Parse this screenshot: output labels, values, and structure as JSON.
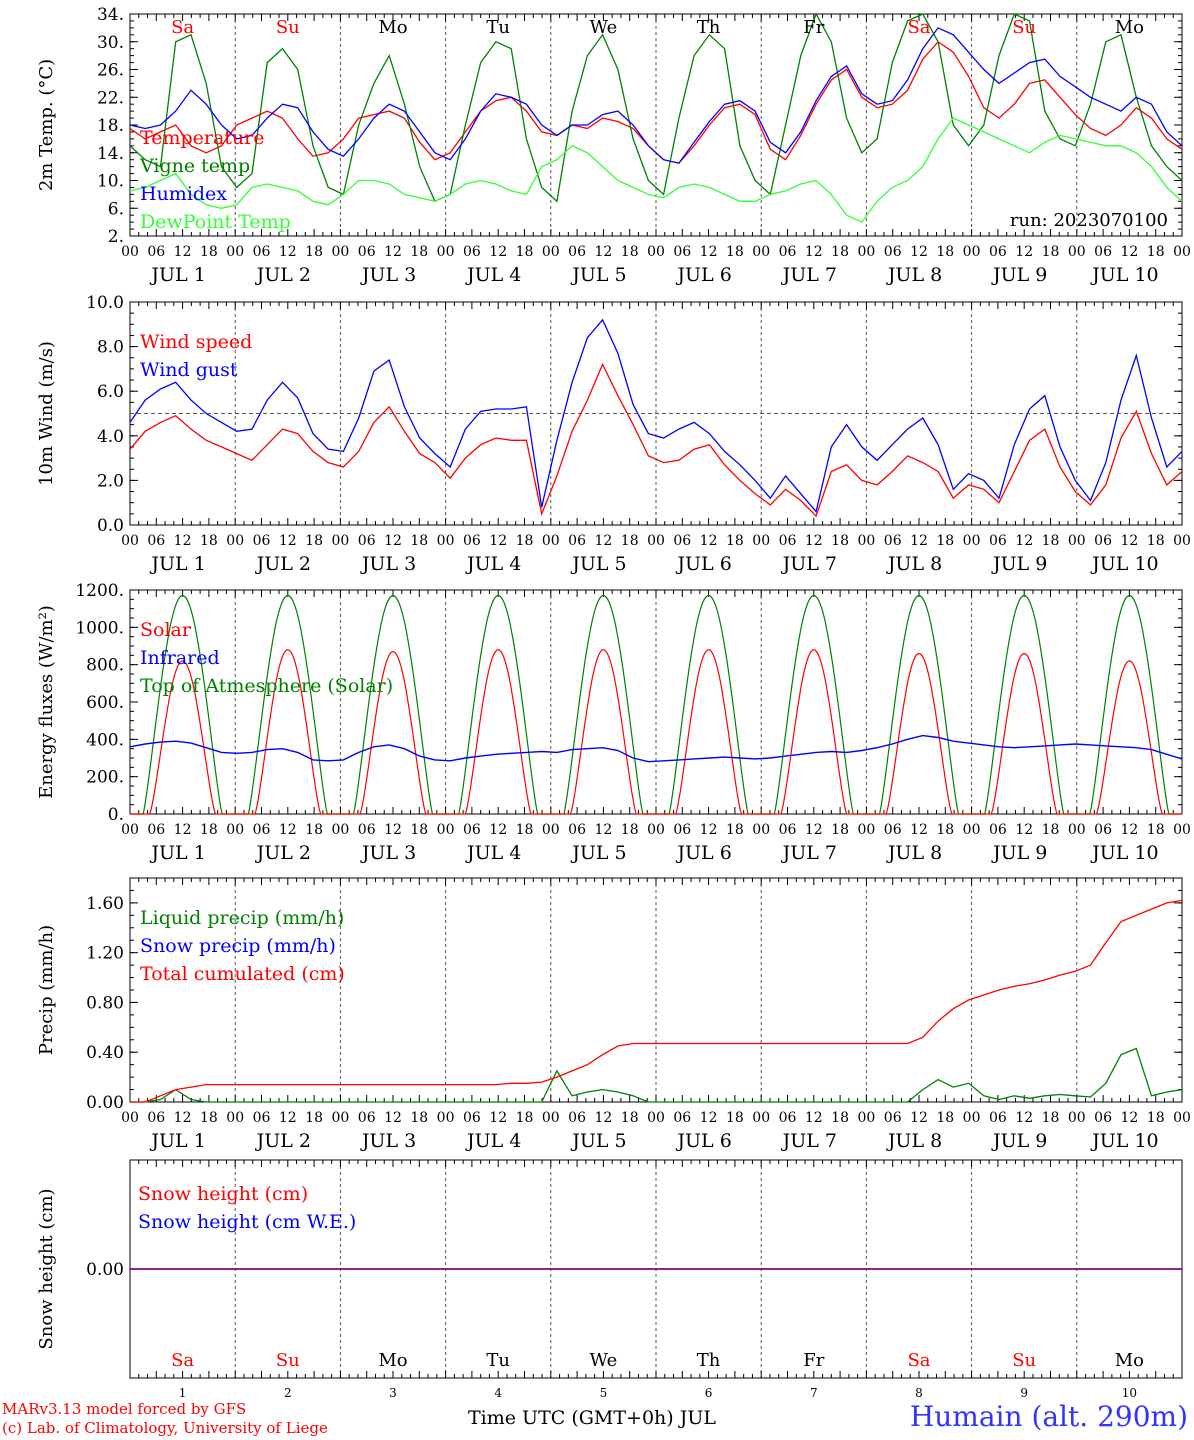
{
  "chart_data": [
    {
      "type": "line",
      "ylabel": "2m Temp. (°C)",
      "ylim": [
        2,
        34
      ],
      "yticks": [
        "34.",
        "30.",
        "26.",
        "22.",
        "18.",
        "14.",
        "10.",
        "6.",
        "2."
      ],
      "ytick_values": [
        34,
        30,
        26,
        22,
        18,
        14,
        10,
        6,
        2
      ],
      "annotation": "run: 2023070100",
      "day_names": [
        "Sa",
        "Su",
        "Mo",
        "Tu",
        "We",
        "Th",
        "Fr",
        "Sa",
        "Su",
        "Mo"
      ],
      "series": [
        {
          "name": "Temperature",
          "color": "#ff0000",
          "values": [
            17.5,
            16,
            17,
            18,
            15,
            14,
            15,
            18,
            19,
            20,
            19,
            16,
            13.5,
            14,
            16,
            19,
            19.5,
            20,
            19,
            15.5,
            13,
            14,
            17,
            20,
            21.5,
            22,
            20,
            17,
            16.5,
            18,
            17.5,
            19,
            18.5,
            17.5,
            15,
            13,
            12.5,
            15,
            18,
            20.5,
            21,
            19.5,
            14.5,
            13,
            16.5,
            21,
            24.5,
            26,
            22,
            20.5,
            21,
            23,
            27.5,
            30,
            28.5,
            25,
            20.5,
            19,
            21,
            24,
            24.5,
            22,
            19.5,
            17.5,
            16.5,
            18,
            20.5,
            19,
            16,
            14.5
          ]
        },
        {
          "name": "Vigne temp",
          "color": "#008000",
          "values": [
            15,
            13,
            12,
            30,
            31,
            24,
            12,
            9,
            11,
            27,
            29,
            26,
            15,
            9,
            8,
            18,
            24,
            28,
            21,
            12,
            7,
            8,
            18,
            27,
            30,
            29,
            16,
            9,
            7,
            20,
            28,
            31,
            26,
            16,
            10,
            8,
            19,
            28,
            31,
            29,
            15,
            10,
            8,
            18,
            28,
            34,
            30,
            19,
            14,
            16,
            27,
            33,
            34,
            30,
            18,
            15,
            18,
            28,
            34,
            33,
            20,
            16,
            15,
            21,
            30,
            31,
            22,
            15,
            12,
            10
          ]
        },
        {
          "name": "Humidex",
          "color": "#0000ff",
          "values": [
            18,
            17.5,
            18,
            20,
            23,
            21,
            18,
            16,
            16.5,
            19,
            21,
            20.5,
            17,
            14.5,
            13.5,
            16,
            19,
            21,
            20,
            17,
            14,
            13,
            16,
            20,
            22.5,
            22,
            21,
            18,
            16.5,
            18,
            18,
            19.5,
            20,
            18,
            15,
            13,
            12.5,
            15.5,
            18.5,
            21,
            21.5,
            20,
            15.5,
            14,
            17,
            21.5,
            25,
            26.5,
            22.5,
            21,
            21.5,
            24.5,
            29,
            32,
            31,
            28.5,
            26,
            24,
            25.5,
            27,
            27.5,
            25,
            23.5,
            22,
            21,
            20,
            22,
            21,
            17,
            15
          ]
        },
        {
          "name": "DewPoint Temp",
          "color": "#33ff33",
          "values": [
            8.5,
            9,
            10,
            11,
            8,
            6.5,
            6,
            6.5,
            9,
            9.5,
            9,
            8.5,
            7,
            6.5,
            8,
            10,
            10,
            9.5,
            8,
            7.5,
            7,
            8,
            9.5,
            10,
            9.5,
            8.5,
            8,
            12,
            13,
            15,
            14,
            12,
            10,
            9,
            8,
            7.5,
            9,
            9.5,
            9,
            8,
            7,
            7,
            8,
            8.5,
            9.5,
            10,
            8,
            5,
            4,
            7,
            9,
            10,
            12,
            16,
            19,
            18,
            17,
            16,
            15,
            14,
            15.5,
            16.5,
            16,
            15.5,
            15,
            15,
            14,
            12,
            9,
            7
          ]
        }
      ]
    },
    {
      "type": "line",
      "ylabel": "10m Wind (m/s)",
      "ylim": [
        0,
        10
      ],
      "yticks": [
        "10.0",
        "8.0",
        "6.0",
        "4.0",
        "2.0",
        "0.0"
      ],
      "ytick_values": [
        10,
        8,
        6,
        4,
        2,
        0
      ],
      "reference_y": 5,
      "series": [
        {
          "name": "Wind speed",
          "color": "#ff0000",
          "values": [
            3.4,
            4.2,
            4.6,
            4.9,
            4.3,
            3.8,
            3.5,
            3.2,
            2.9,
            3.6,
            4.3,
            4.1,
            3.3,
            2.8,
            2.6,
            3.3,
            4.6,
            5.3,
            4.2,
            3.2,
            2.8,
            2.1,
            3.0,
            3.6,
            3.9,
            3.8,
            3.8,
            0.5,
            2.2,
            4.2,
            5.6,
            7.2,
            5.8,
            4.5,
            3.1,
            2.8,
            2.9,
            3.4,
            3.6,
            2.7,
            2.0,
            1.4,
            0.9,
            1.6,
            1.1,
            0.4,
            2.4,
            2.7,
            2.0,
            1.8,
            2.4,
            3.1,
            2.8,
            2.4,
            1.2,
            1.8,
            1.6,
            1.0,
            2.4,
            3.8,
            4.3,
            2.6,
            1.5,
            0.9,
            1.8,
            3.9,
            5.1,
            3.2,
            1.8,
            2.4
          ]
        },
        {
          "name": "Wind gust",
          "color": "#0000ff",
          "values": [
            4.6,
            5.6,
            6.1,
            6.4,
            5.6,
            5.0,
            4.6,
            4.2,
            4.3,
            5.6,
            6.4,
            5.7,
            4.1,
            3.4,
            3.3,
            4.8,
            6.9,
            7.4,
            5.3,
            3.9,
            3.2,
            2.6,
            4.3,
            5.1,
            5.2,
            5.2,
            5.3,
            0.8,
            3.8,
            6.4,
            8.4,
            9.2,
            7.7,
            5.4,
            4.1,
            3.9,
            4.3,
            4.6,
            4.1,
            3.3,
            2.7,
            2.0,
            1.2,
            2.2,
            1.4,
            0.6,
            3.5,
            4.5,
            3.5,
            2.9,
            3.6,
            4.3,
            4.8,
            3.6,
            1.6,
            2.3,
            2.0,
            1.2,
            3.6,
            5.2,
            5.8,
            3.5,
            2.0,
            1.1,
            2.8,
            5.6,
            7.6,
            4.8,
            2.6,
            3.3
          ]
        }
      ]
    },
    {
      "type": "line",
      "ylabel": "Energy fluxes (W/m²)",
      "ylim": [
        0,
        1200
      ],
      "yticks": [
        "1200.",
        "1000.",
        "800.",
        "600.",
        "400.",
        "200.",
        "0."
      ],
      "ytick_values": [
        1200,
        1000,
        800,
        600,
        400,
        200,
        0
      ],
      "series": [
        {
          "name": "Solar",
          "color": "#ff0000",
          "day_peaks": [
            820,
            880,
            870,
            880,
            880,
            880,
            880,
            860,
            860,
            820
          ]
        },
        {
          "name": "Infrared",
          "color": "#0000ff",
          "values": [
            360,
            375,
            385,
            390,
            380,
            355,
            330,
            325,
            330,
            345,
            350,
            330,
            290,
            285,
            290,
            330,
            360,
            370,
            350,
            310,
            290,
            285,
            300,
            310,
            320,
            325,
            330,
            335,
            330,
            345,
            350,
            355,
            340,
            300,
            280,
            285,
            290,
            295,
            300,
            305,
            300,
            295,
            300,
            310,
            320,
            330,
            335,
            330,
            340,
            355,
            375,
            400,
            420,
            410,
            390,
            380,
            370,
            360,
            355,
            360,
            365,
            370,
            375,
            370,
            365,
            360,
            355,
            345,
            320,
            295
          ]
        },
        {
          "name": "Top of Atmesphere (Solar)",
          "color": "#008000",
          "day_peak": 1170
        }
      ]
    },
    {
      "type": "line",
      "ylabel": "Precip (mm/h)",
      "ylim": [
        0,
        1.8
      ],
      "yticks": [
        "1.60",
        "1.20",
        "0.80",
        "0.40",
        "0.00"
      ],
      "ytick_values": [
        1.6,
        1.2,
        0.8,
        0.4,
        0
      ],
      "series": [
        {
          "name": "Liquid precip (mm/h)",
          "color": "#008000",
          "values": [
            0,
            0,
            0.02,
            0.1,
            0.02,
            0,
            0,
            0,
            0,
            0,
            0,
            0,
            0,
            0,
            0,
            0,
            0,
            0,
            0,
            0,
            0,
            0,
            0,
            0,
            0,
            0,
            0,
            0,
            0.25,
            0.05,
            0.08,
            0.1,
            0.08,
            0.05,
            0,
            0,
            0,
            0,
            0,
            0,
            0,
            0,
            0,
            0,
            0,
            0,
            0,
            0,
            0,
            0,
            0,
            0,
            0.1,
            0.18,
            0.12,
            0.15,
            0.05,
            0.02,
            0.05,
            0.03,
            0.05,
            0.06,
            0.05,
            0.04,
            0.15,
            0.38,
            0.43,
            0.05,
            0.08,
            0.1
          ]
        },
        {
          "name": "Snow precip (mm/h)",
          "color": "#0000ff",
          "values": []
        },
        {
          "name": "Total cumulated (cm)",
          "color": "#ff0000",
          "values": [
            0,
            0,
            0.05,
            0.1,
            0.12,
            0.14,
            0.14,
            0.14,
            0.14,
            0.14,
            0.14,
            0.14,
            0.14,
            0.14,
            0.14,
            0.14,
            0.14,
            0.14,
            0.14,
            0.14,
            0.14,
            0.14,
            0.14,
            0.14,
            0.14,
            0.15,
            0.15,
            0.16,
            0.2,
            0.25,
            0.3,
            0.38,
            0.45,
            0.47,
            0.47,
            0.47,
            0.47,
            0.47,
            0.47,
            0.47,
            0.47,
            0.47,
            0.47,
            0.47,
            0.47,
            0.47,
            0.47,
            0.47,
            0.47,
            0.47,
            0.47,
            0.47,
            0.52,
            0.65,
            0.75,
            0.82,
            0.86,
            0.9,
            0.93,
            0.95,
            0.98,
            1.02,
            1.05,
            1.1,
            1.28,
            1.45,
            1.5,
            1.55,
            1.6,
            1.62
          ]
        }
      ]
    },
    {
      "type": "line",
      "ylabel": "Snow height (cm)",
      "ylim": [
        -1,
        1
      ],
      "yticks": [
        "0.00"
      ],
      "ytick_values": [
        0
      ],
      "series": [
        {
          "name": "Snow height (cm)",
          "color": "#ff0000",
          "values": [
            0,
            0
          ]
        },
        {
          "name": "Snow height (cm W.E.)",
          "color": "#0000ff",
          "values": [
            0,
            0
          ]
        }
      ],
      "day_names": [
        "Sa",
        "Su",
        "Mo",
        "Tu",
        "We",
        "Th",
        "Fr",
        "Sa",
        "Su",
        "Mo"
      ],
      "day_numbers": [
        "1",
        "2",
        "3",
        "4",
        "5",
        "6",
        "7",
        "8",
        "9",
        "10"
      ],
      "xlabel": "Time UTC (GMT+0h) JUL"
    }
  ],
  "x_axis": {
    "hour_labels": [
      "00",
      "06",
      "12",
      "18"
    ],
    "final_label": "00",
    "day_labels": [
      "JUL  1",
      "JUL  2",
      "JUL  3",
      "JUL  4",
      "JUL  5",
      "JUL  6",
      "JUL  7",
      "JUL  8",
      "JUL  9",
      "JUL 10"
    ],
    "weekend_color": "#ff0000",
    "weekday_color": "#000000",
    "weekend_index": [
      0,
      1,
      7,
      8
    ]
  },
  "footer": {
    "credit_line1": "MARv3.13 model forced by GFS",
    "credit_line2": "(c) Lab. of Climatology, University of Liege",
    "station": "Humain (alt. 290m)",
    "credit_color": "#ff0000",
    "station_color": "#3333ff"
  }
}
